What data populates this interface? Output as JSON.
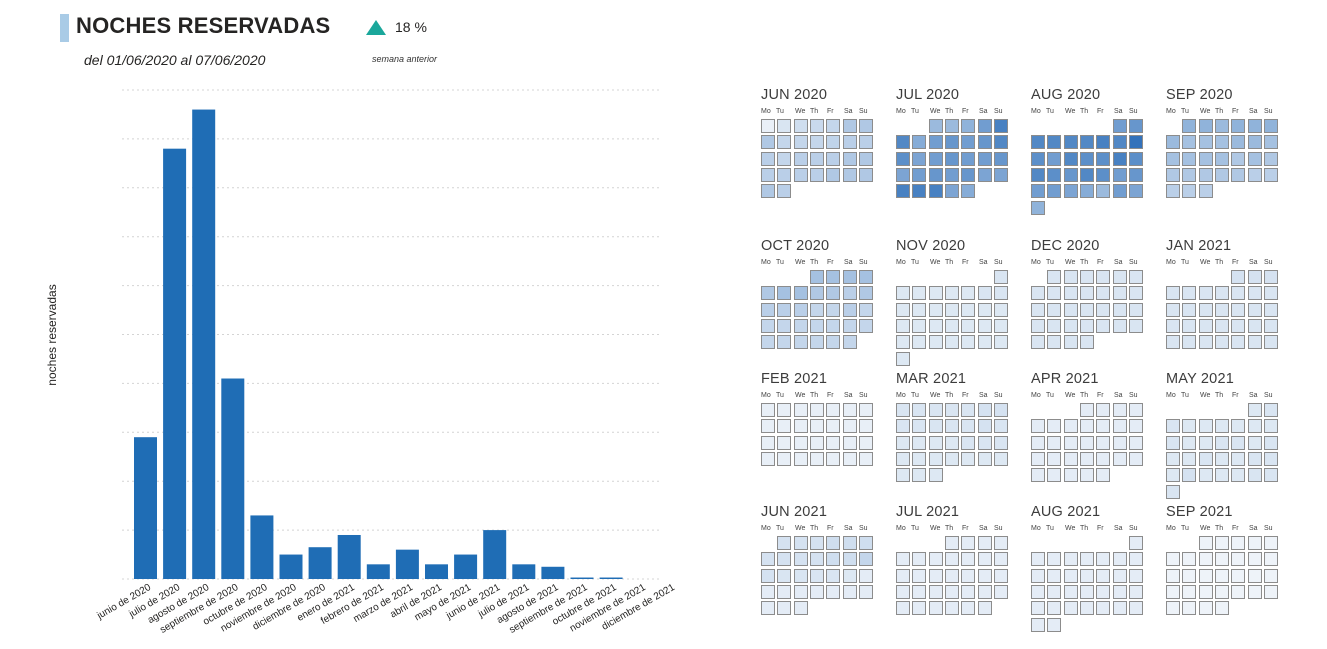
{
  "header": {
    "title": "NOCHES RESERVADAS",
    "subtitle": "del 01/06/2020 al 07/06/2020",
    "kpi_value": "18 %",
    "kpi_caption": "semana anterior",
    "kpi_color": "#1aa79b"
  },
  "chart_data": [
    {
      "type": "bar",
      "title": "",
      "xlabel": "",
      "ylabel": "noches reservadas",
      "bar_color": "#1f6db5",
      "grid": true,
      "ylim": [
        0,
        100
      ],
      "categories": [
        "junio de 2020",
        "julio de 2020",
        "agosto de 2020",
        "septiembre de 2020",
        "octubre de 2020",
        "noviembre de 2020",
        "diciembre de 2020",
        "enero de 2021",
        "febrero de 2021",
        "marzo de 2021",
        "abril de 2021",
        "mayo de 2021",
        "junio de 2021",
        "julio de 2021",
        "agosto de 2021",
        "septiembre de 2021",
        "octubre de 2021",
        "noviembre de 2021",
        "diciembre de 2021"
      ],
      "values": [
        29,
        88,
        96,
        41,
        13,
        5,
        6.5,
        9,
        3,
        6,
        3,
        5,
        10,
        3,
        2.5,
        0.3,
        0.3,
        0,
        0
      ]
    },
    {
      "type": "heatmap",
      "title": "",
      "week_start": "Mo",
      "day_labels": [
        "Mo",
        "Tu",
        "We",
        "Th",
        "Fr",
        "Sa",
        "Su"
      ],
      "color_low": "#eef3f9",
      "color_high": "#1e64b4",
      "months": [
        {
          "label": "JUN 2020",
          "values": [
            0.02,
            0.1,
            0.15,
            0.18,
            0.2,
            0.3,
            0.3,
            0.3,
            0.2,
            0.2,
            0.2,
            0.22,
            0.25,
            0.25,
            0.25,
            0.2,
            0.25,
            0.25,
            0.25,
            0.3,
            0.3,
            0.25,
            0.25,
            0.25,
            0.25,
            0.3,
            0.3,
            0.3,
            0.3,
            0.25
          ]
        },
        {
          "label": "JUL 2020",
          "values": [
            0.4,
            0.4,
            0.45,
            0.6,
            0.8,
            0.75,
            0.5,
            0.6,
            0.65,
            0.6,
            0.65,
            0.75,
            0.7,
            0.55,
            0.6,
            0.65,
            0.6,
            0.6,
            0.65,
            0.55,
            0.6,
            0.65,
            0.6,
            0.65,
            0.55,
            0.55,
            0.8,
            0.8,
            0.8,
            0.55,
            0.5
          ]
        },
        {
          "label": "AUG 2020",
          "values": [
            0.6,
            0.65,
            0.75,
            0.75,
            0.75,
            0.75,
            0.8,
            0.75,
            0.9,
            0.7,
            0.6,
            0.75,
            0.7,
            0.7,
            0.8,
            0.7,
            0.75,
            0.7,
            0.65,
            0.75,
            0.7,
            0.6,
            0.65,
            0.6,
            0.6,
            0.55,
            0.5,
            0.4,
            0.6,
            0.55,
            0.45
          ]
        },
        {
          "label": "SEP 2020",
          "values": [
            0.45,
            0.45,
            0.4,
            0.45,
            0.45,
            0.45,
            0.4,
            0.35,
            0.35,
            0.35,
            0.4,
            0.4,
            0.35,
            0.35,
            0.35,
            0.35,
            0.35,
            0.3,
            0.35,
            0.3,
            0.3,
            0.3,
            0.3,
            0.3,
            0.3,
            0.25,
            0.25,
            0.25,
            0.25,
            0.25
          ]
        },
        {
          "label": "OCT 2020",
          "values": [
            0.35,
            0.35,
            0.35,
            0.35,
            0.3,
            0.35,
            0.35,
            0.3,
            0.3,
            0.25,
            0.3,
            0.25,
            0.25,
            0.25,
            0.2,
            0.2,
            0.25,
            0.2,
            0.2,
            0.2,
            0.2,
            0.2,
            0.2,
            0.2,
            0.2,
            0.2,
            0.2,
            0.2,
            0.2,
            0.2,
            0.2
          ]
        },
        {
          "label": "NOV 2020",
          "values": [
            0.1,
            0.08,
            0.08,
            0.08,
            0.08,
            0.08,
            0.1,
            0.1,
            0.08,
            0.08,
            0.08,
            0.08,
            0.08,
            0.08,
            0.08,
            0.08,
            0.08,
            0.08,
            0.08,
            0.08,
            0.08,
            0.08,
            0.08,
            0.08,
            0.08,
            0.08,
            0.08,
            0.08,
            0.08,
            0.08
          ]
        },
        {
          "label": "DEC 2020",
          "values": [
            0.1,
            0.1,
            0.1,
            0.1,
            0.1,
            0.1,
            0.1,
            0.1,
            0.1,
            0.1,
            0.1,
            0.1,
            0.1,
            0.1,
            0.1,
            0.1,
            0.1,
            0.1,
            0.1,
            0.1,
            0.1,
            0.1,
            0.1,
            0.1,
            0.1,
            0.1,
            0.1,
            0.1,
            0.1,
            0.1,
            0.1
          ]
        },
        {
          "label": "JAN 2021",
          "values": [
            0.12,
            0.12,
            0.12,
            0.1,
            0.1,
            0.1,
            0.1,
            0.1,
            0.1,
            0.1,
            0.1,
            0.1,
            0.1,
            0.1,
            0.1,
            0.1,
            0.1,
            0.1,
            0.1,
            0.1,
            0.1,
            0.1,
            0.1,
            0.1,
            0.1,
            0.1,
            0.1,
            0.1,
            0.1,
            0.1,
            0.1
          ]
        },
        {
          "label": "FEB 2021",
          "values": [
            0.03,
            0.03,
            0.03,
            0.03,
            0.03,
            0.03,
            0.03,
            0.03,
            0.03,
            0.03,
            0.03,
            0.03,
            0.03,
            0.03,
            0.03,
            0.03,
            0.03,
            0.03,
            0.03,
            0.03,
            0.03,
            0.03,
            0.03,
            0.03,
            0.03,
            0.03,
            0.03,
            0.03
          ]
        },
        {
          "label": "MAR 2021",
          "values": [
            0.1,
            0.1,
            0.1,
            0.1,
            0.1,
            0.12,
            0.12,
            0.1,
            0.1,
            0.1,
            0.1,
            0.1,
            0.12,
            0.1,
            0.08,
            0.08,
            0.08,
            0.08,
            0.1,
            0.1,
            0.1,
            0.08,
            0.08,
            0.08,
            0.08,
            0.08,
            0.08,
            0.08,
            0.08,
            0.08,
            0.08
          ]
        },
        {
          "label": "APR 2021",
          "values": [
            0.05,
            0.05,
            0.05,
            0.05,
            0.05,
            0.05,
            0.05,
            0.05,
            0.05,
            0.05,
            0.05,
            0.05,
            0.05,
            0.05,
            0.05,
            0.05,
            0.05,
            0.05,
            0.05,
            0.05,
            0.05,
            0.05,
            0.05,
            0.05,
            0.05,
            0.05,
            0.05,
            0.05,
            0.05,
            0.05
          ]
        },
        {
          "label": "MAY 2021",
          "values": [
            0.08,
            0.1,
            0.1,
            0.08,
            0.08,
            0.08,
            0.08,
            0.08,
            0.08,
            0.1,
            0.08,
            0.08,
            0.1,
            0.1,
            0.08,
            0.1,
            0.08,
            0.08,
            0.1,
            0.08,
            0.08,
            0.1,
            0.1,
            0.08,
            0.12,
            0.08,
            0.08,
            0.08,
            0.1,
            0.1,
            0.1
          ]
        },
        {
          "label": "JUN 2021",
          "values": [
            0.12,
            0.12,
            0.12,
            0.15,
            0.15,
            0.15,
            0.12,
            0.12,
            0.12,
            0.12,
            0.15,
            0.15,
            0.2,
            0.12,
            0.1,
            0.1,
            0.1,
            0.1,
            0.08,
            0.05,
            0.05,
            0.05,
            0.05,
            0.05,
            0.05,
            0.05,
            0.05,
            0.05,
            0.05,
            0.05
          ]
        },
        {
          "label": "JUL 2021",
          "values": [
            0.05,
            0.05,
            0.05,
            0.05,
            0.05,
            0.05,
            0.05,
            0.05,
            0.05,
            0.05,
            0.05,
            0.05,
            0.05,
            0.05,
            0.05,
            0.05,
            0.05,
            0.05,
            0.05,
            0.05,
            0.05,
            0.05,
            0.05,
            0.05,
            0.05,
            0.05,
            0.05,
            0.05,
            0.05,
            0.05,
            0.05
          ]
        },
        {
          "label": "AUG 2021",
          "values": [
            0.05,
            0.05,
            0.05,
            0.05,
            0.05,
            0.05,
            0.05,
            0.05,
            0.05,
            0.05,
            0.05,
            0.05,
            0.05,
            0.05,
            0.05,
            0.05,
            0.05,
            0.05,
            0.05,
            0.05,
            0.05,
            0.05,
            0.05,
            0.05,
            0.05,
            0.05,
            0.05,
            0.05,
            0.05,
            0.05,
            0.05
          ]
        },
        {
          "label": "SEP 2021",
          "values": [
            0,
            0,
            0,
            0,
            0,
            0,
            0,
            0,
            0,
            0,
            0,
            0,
            0,
            0,
            0,
            0,
            0,
            0,
            0,
            0,
            0,
            0,
            0,
            0,
            0,
            0,
            0,
            0,
            0,
            0
          ]
        }
      ]
    }
  ]
}
